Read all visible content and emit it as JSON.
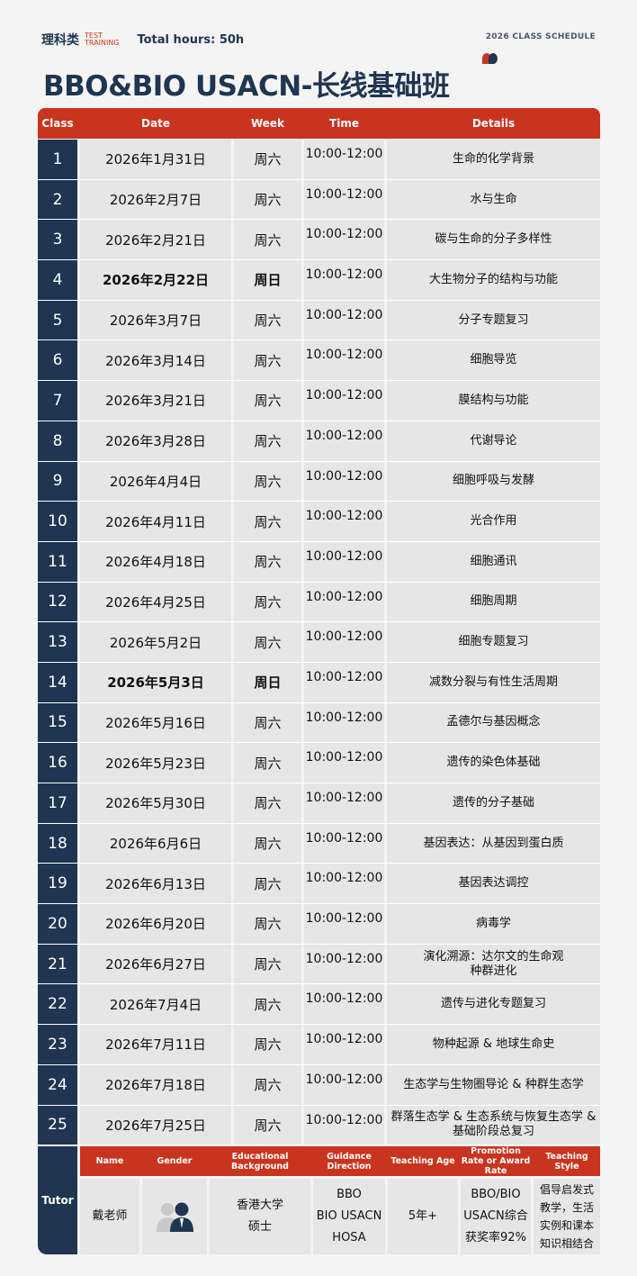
{
  "header": {
    "logo_cn": "理科类",
    "logo_en_1": "TEST",
    "logo_en_2": "TRAINING",
    "total_hours": "Total hours:  50h",
    "schedule_label": "2026 CLASS SCHEDULE",
    "title": "BBO&BIO USACN-长线基础班"
  },
  "colors": {
    "navy": "#1f3551",
    "red": "#c9341f",
    "cell": "#e6e6e6"
  },
  "columns": [
    "Class",
    "Date",
    "Week",
    "Time",
    "Details"
  ],
  "rows": [
    {
      "n": "1",
      "date": "2026年1月31日",
      "week": "周六",
      "time": "10:00-12:00",
      "details": "生命的化学背景"
    },
    {
      "n": "2",
      "date": "2026年2月7日",
      "week": "周六",
      "time": "10:00-12:00",
      "details": "水与生命"
    },
    {
      "n": "3",
      "date": "2026年2月21日",
      "week": "周六",
      "time": "10:00-12:00",
      "details": "碳与生命的分子多样性"
    },
    {
      "n": "4",
      "date": "2026年2月22日",
      "week": "周日",
      "time": "10:00-12:00",
      "details": "大生物分子的结构与功能",
      "bold": true
    },
    {
      "n": "5",
      "date": "2026年3月7日",
      "week": "周六",
      "time": "10:00-12:00",
      "details": "分子专题复习"
    },
    {
      "n": "6",
      "date": "2026年3月14日",
      "week": "周六",
      "time": "10:00-12:00",
      "details": "细胞导览"
    },
    {
      "n": "7",
      "date": "2026年3月21日",
      "week": "周六",
      "time": "10:00-12:00",
      "details": "膜结构与功能"
    },
    {
      "n": "8",
      "date": "2026年3月28日",
      "week": "周六",
      "time": "10:00-12:00",
      "details": "代谢导论"
    },
    {
      "n": "9",
      "date": "2026年4月4日",
      "week": "周六",
      "time": "10:00-12:00",
      "details": "细胞呼吸与发酵"
    },
    {
      "n": "10",
      "date": "2026年4月11日",
      "week": "周六",
      "time": "10:00-12:00",
      "details": "光合作用"
    },
    {
      "n": "11",
      "date": "2026年4月18日",
      "week": "周六",
      "time": "10:00-12:00",
      "details": "细胞通讯"
    },
    {
      "n": "12",
      "date": "2026年4月25日",
      "week": "周六",
      "time": "10:00-12:00",
      "details": "细胞周期"
    },
    {
      "n": "13",
      "date": "2026年5月2日",
      "week": "周六",
      "time": "10:00-12:00",
      "details": "细胞专题复习"
    },
    {
      "n": "14",
      "date": "2026年5月3日",
      "week": "周日",
      "time": "10:00-12:00",
      "details": "减数分裂与有性生活周期",
      "bold": true
    },
    {
      "n": "15",
      "date": "2026年5月16日",
      "week": "周六",
      "time": "10:00-12:00",
      "details": "孟德尔与基因概念"
    },
    {
      "n": "16",
      "date": "2026年5月23日",
      "week": "周六",
      "time": "10:00-12:00",
      "details": "遗传的染色体基础"
    },
    {
      "n": "17",
      "date": "2026年5月30日",
      "week": "周六",
      "time": "10:00-12:00",
      "details": "遗传的分子基础"
    },
    {
      "n": "18",
      "date": "2026年6月6日",
      "week": "周六",
      "time": "10:00-12:00",
      "details": "基因表达：从基因到蛋白质"
    },
    {
      "n": "19",
      "date": "2026年6月13日",
      "week": "周六",
      "time": "10:00-12:00",
      "details": "基因表达调控"
    },
    {
      "n": "20",
      "date": "2026年6月20日",
      "week": "周六",
      "time": "10:00-12:00",
      "details": "病毒学"
    },
    {
      "n": "21",
      "date": "2026年6月27日",
      "week": "周六",
      "time": "10:00-12:00",
      "details": "演化溯源：达尔文的生命观\n种群进化"
    },
    {
      "n": "22",
      "date": "2026年7月4日",
      "week": "周六",
      "time": "10:00-12:00",
      "details": "遗传与进化专题复习"
    },
    {
      "n": "23",
      "date": "2026年7月11日",
      "week": "周六",
      "time": "10:00-12:00",
      "details": "物种起源 & 地球生命史"
    },
    {
      "n": "24",
      "date": "2026年7月18日",
      "week": "周六",
      "time": "10:00-12:00",
      "details": "生态学与生物圈导论 & 种群生态学"
    },
    {
      "n": "25",
      "date": "2026年7月25日",
      "week": "周六",
      "time": "10:00-12:00",
      "details": "群落生态学 & 生态系统与恢复生态学 & 基础阶段总复习"
    }
  ],
  "tutor": {
    "label": "Tutor",
    "headers": [
      "Name",
      "Gender",
      "Educational Background",
      "Guidance Direction",
      "Teaching Age",
      "Promotion Rate or Award Rate",
      "Teaching Style"
    ],
    "name": "戴老师",
    "gender_icon": "male-female-avatar-icon",
    "education": "香港大学\n硕士",
    "direction": "BBO\nBIO USACN\nHOSA",
    "age": "5年+",
    "rate": "BBO/BIO\nUSACN综合\n获奖率92%",
    "style": "倡导启发式教学，生活实例和课本知识相结合"
  }
}
